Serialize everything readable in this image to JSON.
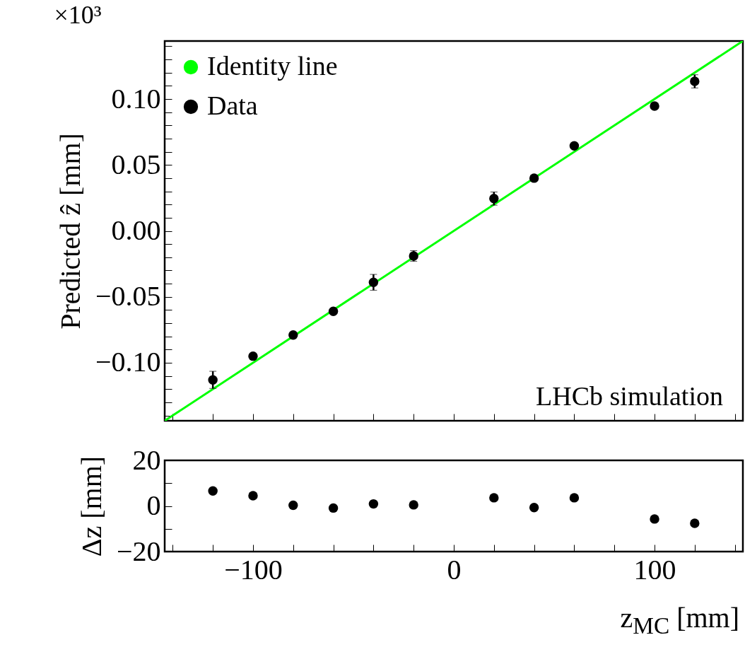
{
  "chart_data": [
    {
      "type": "scatter",
      "ylabel": "Predicted ẑ [mm]",
      "annotations": [
        "×10³",
        "LHCb simulation"
      ],
      "xlim": [
        -144,
        144
      ],
      "ylim": [
        -0.144,
        0.144
      ],
      "xticks": [
        {
          "value": -140,
          "label": null
        },
        {
          "value": -120,
          "label": null
        },
        {
          "value": -100,
          "label": null
        },
        {
          "value": -80,
          "label": null
        },
        {
          "value": -60,
          "label": null
        },
        {
          "value": -40,
          "label": null
        },
        {
          "value": -20,
          "label": null
        },
        {
          "value": 0,
          "label": null
        },
        {
          "value": 20,
          "label": null
        },
        {
          "value": 40,
          "label": null
        },
        {
          "value": 60,
          "label": null
        },
        {
          "value": 80,
          "label": null
        },
        {
          "value": 100,
          "label": null
        },
        {
          "value": 120,
          "label": null
        },
        {
          "value": 140,
          "label": null
        }
      ],
      "yticks": [
        {
          "value": -0.14,
          "label": null
        },
        {
          "value": -0.13,
          "label": null
        },
        {
          "value": -0.12,
          "label": null
        },
        {
          "value": -0.11,
          "label": null
        },
        {
          "value": -0.1,
          "label": "−0.10"
        },
        {
          "value": -0.09,
          "label": null
        },
        {
          "value": -0.08,
          "label": null
        },
        {
          "value": -0.07,
          "label": null
        },
        {
          "value": -0.06,
          "label": null
        },
        {
          "value": -0.05,
          "label": "−0.05"
        },
        {
          "value": -0.04,
          "label": null
        },
        {
          "value": -0.03,
          "label": null
        },
        {
          "value": -0.02,
          "label": null
        },
        {
          "value": -0.01,
          "label": null
        },
        {
          "value": 0,
          "label": "0.00"
        },
        {
          "value": 0.01,
          "label": null
        },
        {
          "value": 0.02,
          "label": null
        },
        {
          "value": 0.03,
          "label": null
        },
        {
          "value": 0.04,
          "label": null
        },
        {
          "value": 0.05,
          "label": "0.05"
        },
        {
          "value": 0.06,
          "label": null
        },
        {
          "value": 0.07,
          "label": null
        },
        {
          "value": 0.08,
          "label": null
        },
        {
          "value": 0.09,
          "label": null
        },
        {
          "value": 0.1,
          "label": "0.10"
        },
        {
          "value": 0.11,
          "label": null
        },
        {
          "value": 0.12,
          "label": null
        },
        {
          "value": 0.13,
          "label": null
        },
        {
          "value": 0.14,
          "label": null
        }
      ],
      "tick_labels": "y",
      "legend": "top left",
      "series": [
        {
          "name": "Identity line",
          "type": "line",
          "color": "#00ff00",
          "x": [
            -144,
            144
          ],
          "values": [
            -0.144,
            0.144
          ]
        },
        {
          "name": "Data",
          "color": "#000000",
          "marker": "circle",
          "x": [
            -120,
            -100,
            -80,
            -60,
            -40,
            -20,
            20,
            40,
            60,
            100,
            120
          ],
          "values": [
            -0.113,
            -0.095,
            -0.079,
            -0.061,
            -0.039,
            -0.019,
            0.0245,
            0.04,
            0.0645,
            0.0947,
            0.1134
          ],
          "errors": [
            0.0065,
            null,
            null,
            null,
            0.006,
            0.004,
            0.005,
            null,
            null,
            null,
            0.005
          ]
        }
      ]
    },
    {
      "type": "scatter",
      "xlabel": "z$_{MC}$ [mm]",
      "ylabel": "Δz [mm]",
      "xlim": [
        -144,
        144
      ],
      "ylim": [
        -20,
        20
      ],
      "xticks": [
        {
          "value": -140,
          "label": null
        },
        {
          "value": -120,
          "label": null
        },
        {
          "value": -100,
          "label": "−100"
        },
        {
          "value": -80,
          "label": null
        },
        {
          "value": -60,
          "label": null
        },
        {
          "value": -40,
          "label": null
        },
        {
          "value": -20,
          "label": null
        },
        0,
        {
          "value": 20,
          "label": null
        },
        {
          "value": 40,
          "label": null
        },
        {
          "value": 60,
          "label": null
        },
        {
          "value": 80,
          "label": null
        },
        100,
        {
          "value": 120,
          "label": null
        },
        {
          "value": 140,
          "label": null
        }
      ],
      "yticks": [
        {
          "value": -20,
          "label": "−20"
        },
        {
          "value": -10,
          "label": null
        },
        0,
        {
          "value": 10,
          "label": null
        },
        20
      ],
      "series": [
        {
          "color": "#000000",
          "marker": "circle",
          "x": [
            -120,
            -100,
            -80,
            -60,
            -40,
            -20,
            20,
            40,
            60,
            100,
            120
          ],
          "values": [
            6.6,
            4.5,
            0.3,
            -0.9,
            0.9,
            0.5,
            3.6,
            -0.7,
            3.6,
            -5.7,
            -7.6
          ]
        }
      ]
    }
  ]
}
